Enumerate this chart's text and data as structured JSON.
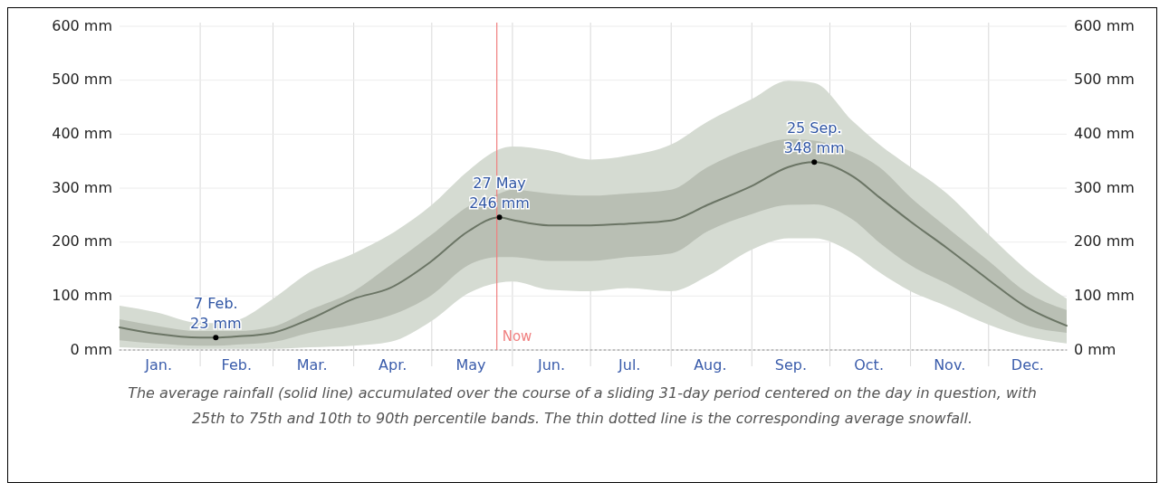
{
  "chart_data": {
    "type": "line",
    "x": [
      "--01-01",
      "--01-15",
      "--02-01",
      "--02-07",
      "--02-15",
      "--03-01",
      "--03-15",
      "--04-01",
      "--04-15",
      "--05-01",
      "--05-15",
      "--05-27",
      "--06-01",
      "--06-15",
      "--07-01",
      "--07-15",
      "--08-01",
      "--08-15",
      "--09-01",
      "--09-15",
      "--09-25",
      "--10-10",
      "--10-20",
      "--11-01",
      "--11-15",
      "--12-01",
      "--12-15",
      "--12-31"
    ],
    "series": [
      {
        "type": "area",
        "color": "#d5dbd2",
        "values": [
          null,
          null,
          null,
          null,
          null,
          null,
          null,
          null,
          null,
          null,
          null,
          null,
          null,
          null,
          null,
          null,
          null,
          null,
          null,
          null,
          null,
          null,
          null,
          null,
          null,
          null,
          null,
          null
        ],
        "lower": [
          5,
          3,
          2,
          2,
          2,
          2,
          5,
          8,
          15,
          54,
          105,
          125,
          127,
          112,
          109,
          115,
          109,
          137,
          186,
          207,
          207,
          179,
          144,
          109,
          81,
          47,
          25,
          12
        ],
        "upper": [
          82,
          70,
          50,
          50,
          55,
          95,
          144,
          179,
          214,
          269,
          332,
          372,
          377,
          370,
          353,
          360,
          381,
          423,
          465,
          499,
          495,
          423,
          381,
          339,
          290,
          214,
          151,
          95
        ]
      },
      {
        "type": "area",
        "color": "#b9bfb4",
        "values": [
          null,
          null,
          null,
          null,
          null,
          null,
          null,
          null,
          null,
          null,
          null,
          null,
          null,
          null,
          null,
          null,
          null,
          null,
          null,
          null,
          null,
          null,
          null,
          null,
          null,
          null,
          null,
          null
        ],
        "lower": [
          18,
          12,
          8,
          8,
          10,
          15,
          32,
          47,
          64,
          102,
          157,
          172,
          172,
          165,
          165,
          172,
          179,
          220,
          252,
          269,
          270,
          241,
          199,
          157,
          123,
          81,
          47,
          32
        ],
        "upper": [
          57,
          45,
          35,
          35,
          35,
          43,
          74,
          109,
          157,
          214,
          266,
          290,
          297,
          290,
          286,
          290,
          297,
          339,
          374,
          391,
          388,
          366,
          339,
          283,
          227,
          165,
          109,
          74
        ]
      },
      {
        "color": "#6b7565",
        "values": [
          42,
          30,
          23,
          23,
          25,
          32,
          57,
          95,
          115,
          165,
          220,
          246,
          241,
          231,
          231,
          234,
          240,
          269,
          304,
          339,
          348,
          321,
          283,
          238,
          189,
          130,
          81,
          45
        ]
      },
      {
        "color": "#8a8a8a",
        "line_style": "dotted",
        "x": [
          "--01-01",
          "--12-31"
        ],
        "values": [
          0,
          0
        ]
      }
    ],
    "xlim": [
      "--01-01",
      "--12-31"
    ],
    "xticks": [
      {
        "value": "--01-16",
        "label": "Jan."
      },
      {
        "value": "--02-01",
        "label": null
      },
      {
        "value": "--02-15",
        "label": "Feb."
      },
      {
        "value": "--03-01",
        "label": null
      },
      {
        "value": "--03-16",
        "label": "Mar."
      },
      {
        "value": "--04-01",
        "label": null
      },
      {
        "value": "--04-16",
        "label": "Apr."
      },
      {
        "value": "--05-01",
        "label": null
      },
      {
        "value": "--05-16",
        "label": "May"
      },
      {
        "value": "--06-01",
        "label": null
      },
      {
        "value": "--06-16",
        "label": "Jun."
      },
      {
        "value": "--07-01",
        "label": null
      },
      {
        "value": "--07-16",
        "label": "Jul."
      },
      {
        "value": "--08-01",
        "label": null
      },
      {
        "value": "--08-16",
        "label": "Aug."
      },
      {
        "value": "--09-01",
        "label": null
      },
      {
        "value": "--09-16",
        "label": "Sep."
      },
      {
        "value": "--10-01",
        "label": null
      },
      {
        "value": "--10-16",
        "label": "Oct."
      },
      {
        "value": "--11-01",
        "label": null
      },
      {
        "value": "--11-16",
        "label": "Nov."
      },
      {
        "value": "--12-01",
        "label": null
      },
      {
        "value": "--12-16",
        "label": "Dec."
      }
    ],
    "ylim": [
      0,
      600
    ],
    "yticks": [
      {
        "value": 0,
        "label": "0 mm"
      },
      {
        "value": 100,
        "label": "100 mm"
      },
      {
        "value": 200,
        "label": "200 mm"
      },
      {
        "value": 300,
        "label": "300 mm"
      },
      {
        "value": 400,
        "label": "400 mm"
      },
      {
        "value": 500,
        "label": "500 mm"
      },
      {
        "value": 600,
        "label": "600 mm"
      }
    ],
    "y2lim": [
      0,
      600
    ],
    "y2ticks": [
      {
        "value": 0,
        "label": "0 mm"
      },
      {
        "value": 100,
        "label": "100 mm"
      },
      {
        "value": 200,
        "label": "200 mm"
      },
      {
        "value": 300,
        "label": "300 mm"
      },
      {
        "value": 400,
        "label": "400 mm"
      },
      {
        "value": 500,
        "label": "500 mm"
      },
      {
        "value": 600,
        "label": "600 mm"
      }
    ],
    "grid": true,
    "ref_lines": [
      {
        "axis": "x",
        "value": "--05-26",
        "label": "Now",
        "color": "#f08080"
      }
    ],
    "annotations": [
      {
        "text": "7 Feb.\n23 mm",
        "x": "--02-07",
        "y": 23
      },
      {
        "text": "27 May\n246 mm",
        "x": "--05-27",
        "y": 246
      },
      {
        "text": "25 Sep.\n348 mm",
        "x": "--09-25",
        "y": 348
      },
      "The average rainfall (solid line) accumulated over the course of a sliding 31-day period centered on the day in question, with 25th to 75th and 10th to 90th percentile bands. The thin dotted line is the corresponding average snowfall."
    ]
  }
}
